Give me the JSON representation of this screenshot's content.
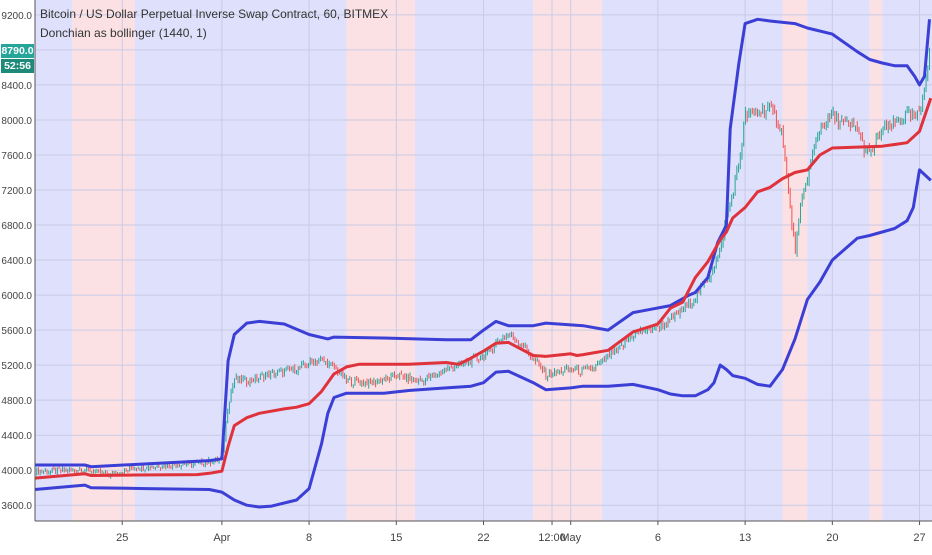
{
  "header": {
    "title": "Bitcoin / US Dollar Perpetual Inverse Swap Contract, 60, BITMEX",
    "indicator": "Donchian as bollinger (1440, 1)"
  },
  "price_tags": {
    "last_price": "8790.0",
    "countdown": "52:56",
    "last_color": "#26a69a",
    "countdown_color": "#1e8a7a"
  },
  "colors": {
    "band": "#3b3fd6",
    "basis": "#e0323a",
    "bg_blue": "#dfe0fb",
    "bg_red": "#fbe1e4",
    "candle_up": "#26a69a",
    "candle_down": "#ef5350"
  },
  "chart_data": {
    "type": "line",
    "title": "Bitcoin / US Dollar Perpetual Inverse Swap Contract, 60, BITMEX",
    "xlabel": "",
    "ylabel": "",
    "x_ticks": [
      "25",
      "Apr",
      "8",
      "15",
      "22",
      "12:00",
      "May",
      "6",
      "13",
      "20",
      "27"
    ],
    "x_tick_days": [
      -6,
      2,
      9,
      16,
      23,
      28.5,
      30,
      37,
      44,
      51,
      58
    ],
    "x_range_days": [
      -13,
      59
    ],
    "y_ticks": [
      3600,
      4000,
      4400,
      4800,
      5200,
      5600,
      6000,
      6400,
      6800,
      7200,
      7600,
      8000,
      8400,
      8800,
      9200
    ],
    "y_tick_labels": [
      "3600.0",
      "4000.0",
      "4400.0",
      "4800.0",
      "5200.0",
      "5600.0",
      "6000.0",
      "6400.0",
      "6800.0",
      "7200.0",
      "7600.0",
      "8000.0",
      "8400.0",
      "8800.0",
      "9200.0"
    ],
    "ylim": [
      3420,
      9370
    ],
    "grid": true,
    "background_regions": [
      {
        "from": -13,
        "to": -10,
        "state": "blue"
      },
      {
        "from": -10,
        "to": -5,
        "state": "red"
      },
      {
        "from": -5,
        "to": 12,
        "state": "blue"
      },
      {
        "from": 12,
        "to": 17.5,
        "state": "red"
      },
      {
        "from": 17.5,
        "to": 27,
        "state": "blue"
      },
      {
        "from": 27,
        "to": 32.5,
        "state": "red"
      },
      {
        "from": 32.5,
        "to": 47,
        "state": "blue"
      },
      {
        "from": 47,
        "to": 49,
        "state": "red"
      },
      {
        "from": 49,
        "to": 54,
        "state": "blue"
      },
      {
        "from": 54,
        "to": 55,
        "state": "red"
      },
      {
        "from": 55,
        "to": 59,
        "state": "blue"
      }
    ],
    "series": [
      {
        "name": "",
        "role": "upper",
        "x": [
          -13,
          -9,
          -8.5,
          1,
          2,
          2.5,
          3,
          4,
          5,
          7,
          9,
          10.5,
          11,
          15,
          20,
          22,
          23,
          24,
          25,
          27,
          28,
          30,
          31,
          33,
          35,
          38,
          39.5,
          40,
          41,
          41.8,
          42.5,
          42.8,
          43.5,
          44,
          45,
          46,
          48,
          49,
          51,
          53,
          54,
          55,
          56,
          57,
          57.6,
          58,
          58.4,
          58.8
        ],
        "y": [
          4060,
          4060,
          4040,
          4110,
          4130,
          5250,
          5550,
          5680,
          5700,
          5670,
          5550,
          5500,
          5520,
          5510,
          5490,
          5490,
          5600,
          5700,
          5650,
          5650,
          5680,
          5660,
          5650,
          5600,
          5800,
          5880,
          6000,
          6030,
          6200,
          6600,
          6800,
          7900,
          8650,
          9100,
          9150,
          9130,
          9100,
          9050,
          8980,
          8780,
          8690,
          8650,
          8620,
          8620,
          8500,
          8400,
          8500,
          9150
        ]
      },
      {
        "name": "",
        "role": "basis",
        "x": [
          -13,
          -9,
          -8.5,
          -5,
          0,
          1,
          2,
          2.5,
          3,
          4,
          5,
          7,
          8,
          9,
          10,
          11,
          12,
          13,
          17,
          20,
          21,
          22,
          23,
          24,
          25,
          27,
          28,
          30,
          30.5,
          31,
          33,
          35,
          37,
          38,
          39,
          40,
          41,
          42,
          42.5,
          43,
          44,
          45,
          46,
          47,
          48,
          49,
          50,
          51,
          53,
          55,
          56,
          57,
          58,
          58.9
        ],
        "y": [
          3910,
          3960,
          3940,
          3945,
          3950,
          3965,
          3990,
          4270,
          4510,
          4600,
          4650,
          4700,
          4720,
          4760,
          4900,
          5100,
          5180,
          5210,
          5210,
          5230,
          5210,
          5280,
          5360,
          5450,
          5460,
          5310,
          5300,
          5330,
          5310,
          5320,
          5370,
          5580,
          5670,
          5850,
          5920,
          6200,
          6380,
          6630,
          6720,
          6880,
          7000,
          7180,
          7230,
          7330,
          7400,
          7430,
          7600,
          7680,
          7690,
          7700,
          7720,
          7740,
          7870,
          8250
        ]
      },
      {
        "name": "",
        "role": "lower",
        "x": [
          -13,
          -9,
          -8.5,
          -4,
          1,
          2,
          3,
          4,
          5,
          6,
          8,
          9,
          10,
          10.5,
          11,
          12,
          15,
          17,
          20,
          22,
          23,
          24,
          25,
          27,
          28,
          30,
          31,
          33,
          35,
          37,
          38,
          39,
          40,
          41,
          41.5,
          42,
          42.5,
          43,
          44,
          45,
          46,
          47,
          48,
          49,
          50,
          51,
          53,
          54,
          55,
          56,
          57,
          57.5,
          58,
          58.9
        ],
        "y": [
          3780,
          3830,
          3800,
          3790,
          3780,
          3750,
          3660,
          3600,
          3580,
          3590,
          3660,
          3790,
          4300,
          4650,
          4830,
          4880,
          4880,
          4910,
          4940,
          4960,
          5000,
          5120,
          5130,
          5000,
          4920,
          4940,
          4960,
          4960,
          4980,
          4920,
          4870,
          4850,
          4850,
          4920,
          5000,
          5200,
          5150,
          5080,
          5050,
          4980,
          4960,
          5150,
          5500,
          5950,
          6150,
          6400,
          6650,
          6680,
          6720,
          6760,
          6850,
          7000,
          7430,
          7310
        ]
      },
      {
        "name": "",
        "role": "price",
        "x": [
          -13,
          -9,
          -7,
          -5,
          0,
          2,
          2.5,
          3,
          4,
          6,
          8,
          9,
          10,
          11,
          12,
          14,
          16,
          18,
          21,
          23,
          24,
          25,
          26,
          27,
          28,
          30,
          31,
          32,
          33,
          34,
          35,
          37,
          38,
          39,
          40,
          41,
          42,
          42.5,
          43,
          43.5,
          44,
          45,
          46,
          47,
          47.5,
          48,
          48.5,
          49,
          50,
          51,
          52,
          53,
          53.5,
          54,
          55,
          56,
          57,
          58,
          58.5,
          58.8
        ],
        "y": [
          3980,
          4010,
          3940,
          4030,
          4080,
          4120,
          4750,
          5050,
          5020,
          5100,
          5150,
          5230,
          5250,
          5180,
          5020,
          5000,
          5080,
          5020,
          5200,
          5300,
          5450,
          5550,
          5450,
          5270,
          5090,
          5150,
          5120,
          5180,
          5300,
          5400,
          5550,
          5650,
          5700,
          5850,
          5980,
          6180,
          6480,
          6900,
          7150,
          7500,
          8050,
          8100,
          8150,
          7850,
          7150,
          6500,
          7050,
          7350,
          7900,
          8050,
          7950,
          7900,
          7700,
          7600,
          7900,
          7950,
          8050,
          8050,
          8500,
          8790
        ]
      }
    ],
    "last_value": 8790.0
  }
}
